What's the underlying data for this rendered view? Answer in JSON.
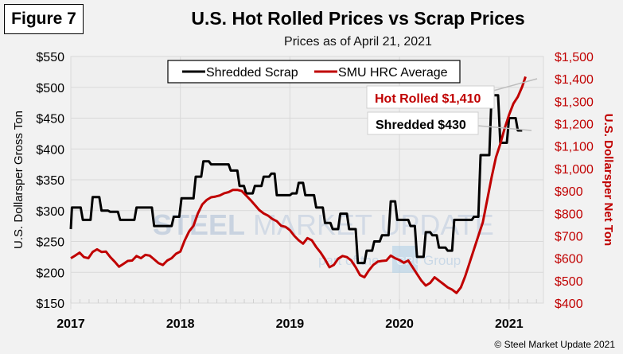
{
  "figure_label": "Figure 7",
  "copyright": "© Steel Market Update 2021",
  "watermark": {
    "line1_bold": "STEEL",
    "line1_light": "MARKET UPDATE",
    "line2": "part of the",
    "badge": "CRU",
    "line2_end": "Group"
  },
  "chart_data": {
    "type": "line",
    "title": "U.S. Hot Rolled Prices vs Scrap Prices",
    "subtitle": "Prices as of April 21, 2021",
    "xlabel": "",
    "x_ticks": [
      "2017",
      "2018",
      "2019",
      "2020",
      "2021"
    ],
    "x_range": [
      2017.0,
      2021.32
    ],
    "y_left": {
      "label": "U.S. Dollarsper Gross Ton",
      "range": [
        150,
        550
      ],
      "ticks": [
        "$150",
        "$200",
        "$250",
        "$300",
        "$350",
        "$400",
        "$450",
        "$500",
        "$550"
      ],
      "color": "#000000"
    },
    "y_right": {
      "label": "U.S. Dollarsper Net Ton",
      "range": [
        400,
        1500
      ],
      "ticks": [
        "$400",
        "$500",
        "$600",
        "$700",
        "$800",
        "$900",
        "$1,000",
        "$1,100",
        "$1,200",
        "$1,300",
        "$1,400",
        "$1,500"
      ],
      "color": "#c00000"
    },
    "grid": true,
    "legend": {
      "position": "top-center",
      "entries": [
        "Shredded Scrap",
        "SMU HRC Average"
      ]
    },
    "annotations": [
      {
        "text": "Hot Rolled $1,410",
        "series": "SMU HRC Average",
        "color": "#c00000"
      },
      {
        "text": "Shredded $430",
        "series": "Shredded Scrap",
        "color": "#000000"
      }
    ],
    "series": [
      {
        "name": "Shredded Scrap",
        "axis": "left",
        "color": "#000000",
        "step": true,
        "points": [
          [
            2017.0,
            270
          ],
          [
            2017.01,
            305
          ],
          [
            2017.09,
            305
          ],
          [
            2017.11,
            285
          ],
          [
            2017.18,
            285
          ],
          [
            2017.2,
            322
          ],
          [
            2017.26,
            322
          ],
          [
            2017.28,
            300
          ],
          [
            2017.34,
            300
          ],
          [
            2017.36,
            298
          ],
          [
            2017.43,
            298
          ],
          [
            2017.45,
            285
          ],
          [
            2017.58,
            285
          ],
          [
            2017.6,
            305
          ],
          [
            2017.74,
            305
          ],
          [
            2017.76,
            275
          ],
          [
            2017.92,
            275
          ],
          [
            2017.94,
            290
          ],
          [
            2017.99,
            290
          ],
          [
            2018.01,
            320
          ],
          [
            2018.12,
            320
          ],
          [
            2018.14,
            355
          ],
          [
            2018.19,
            355
          ],
          [
            2018.21,
            380
          ],
          [
            2018.26,
            380
          ],
          [
            2018.28,
            375
          ],
          [
            2018.44,
            375
          ],
          [
            2018.46,
            365
          ],
          [
            2018.52,
            365
          ],
          [
            2018.54,
            340
          ],
          [
            2018.58,
            340
          ],
          [
            2018.6,
            328
          ],
          [
            2018.66,
            328
          ],
          [
            2018.68,
            340
          ],
          [
            2018.74,
            340
          ],
          [
            2018.76,
            355
          ],
          [
            2018.81,
            355
          ],
          [
            2018.83,
            360
          ],
          [
            2018.86,
            360
          ],
          [
            2018.88,
            325
          ],
          [
            2019.0,
            325
          ],
          [
            2019.02,
            328
          ],
          [
            2019.06,
            328
          ],
          [
            2019.08,
            345
          ],
          [
            2019.12,
            345
          ],
          [
            2019.14,
            325
          ],
          [
            2019.22,
            325
          ],
          [
            2019.24,
            305
          ],
          [
            2019.3,
            305
          ],
          [
            2019.32,
            280
          ],
          [
            2019.37,
            280
          ],
          [
            2019.39,
            270
          ],
          [
            2019.44,
            270
          ],
          [
            2019.46,
            295
          ],
          [
            2019.52,
            295
          ],
          [
            2019.54,
            270
          ],
          [
            2019.6,
            270
          ],
          [
            2019.62,
            215
          ],
          [
            2019.68,
            215
          ],
          [
            2019.7,
            235
          ],
          [
            2019.75,
            235
          ],
          [
            2019.77,
            250
          ],
          [
            2019.82,
            250
          ],
          [
            2019.84,
            260
          ],
          [
            2019.9,
            260
          ],
          [
            2019.92,
            315
          ],
          [
            2019.96,
            315
          ],
          [
            2019.98,
            285
          ],
          [
            2020.08,
            285
          ],
          [
            2020.1,
            275
          ],
          [
            2020.14,
            275
          ],
          [
            2020.16,
            225
          ],
          [
            2020.22,
            225
          ],
          [
            2020.24,
            265
          ],
          [
            2020.28,
            265
          ],
          [
            2020.3,
            260
          ],
          [
            2020.34,
            260
          ],
          [
            2020.36,
            240
          ],
          [
            2020.42,
            240
          ],
          [
            2020.44,
            235
          ],
          [
            2020.48,
            235
          ],
          [
            2020.5,
            285
          ],
          [
            2020.66,
            285
          ],
          [
            2020.68,
            290
          ],
          [
            2020.72,
            290
          ],
          [
            2020.74,
            390
          ],
          [
            2020.82,
            390
          ],
          [
            2020.84,
            487
          ],
          [
            2020.9,
            487
          ],
          [
            2020.92,
            410
          ],
          [
            2020.98,
            410
          ],
          [
            2021.0,
            450
          ],
          [
            2021.06,
            450
          ],
          [
            2021.08,
            430
          ],
          [
            2021.12,
            430
          ]
        ]
      },
      {
        "name": "SMU HRC Average",
        "axis": "right",
        "color": "#c00000",
        "step": false,
        "points": [
          [
            2017.0,
            600
          ],
          [
            2017.04,
            612
          ],
          [
            2017.08,
            625
          ],
          [
            2017.12,
            605
          ],
          [
            2017.16,
            600
          ],
          [
            2017.2,
            628
          ],
          [
            2017.24,
            640
          ],
          [
            2017.28,
            628
          ],
          [
            2017.32,
            630
          ],
          [
            2017.36,
            605
          ],
          [
            2017.4,
            585
          ],
          [
            2017.44,
            562
          ],
          [
            2017.48,
            575
          ],
          [
            2017.52,
            588
          ],
          [
            2017.56,
            590
          ],
          [
            2017.6,
            610
          ],
          [
            2017.64,
            600
          ],
          [
            2017.68,
            615
          ],
          [
            2017.72,
            612
          ],
          [
            2017.76,
            595
          ],
          [
            2017.8,
            578
          ],
          [
            2017.84,
            570
          ],
          [
            2017.88,
            590
          ],
          [
            2017.92,
            600
          ],
          [
            2017.96,
            620
          ],
          [
            2018.0,
            630
          ],
          [
            2018.04,
            680
          ],
          [
            2018.08,
            720
          ],
          [
            2018.12,
            745
          ],
          [
            2018.16,
            800
          ],
          [
            2018.2,
            840
          ],
          [
            2018.24,
            860
          ],
          [
            2018.28,
            872
          ],
          [
            2018.32,
            875
          ],
          [
            2018.36,
            880
          ],
          [
            2018.4,
            890
          ],
          [
            2018.44,
            895
          ],
          [
            2018.48,
            905
          ],
          [
            2018.52,
            905
          ],
          [
            2018.56,
            900
          ],
          [
            2018.6,
            880
          ],
          [
            2018.64,
            860
          ],
          [
            2018.68,
            838
          ],
          [
            2018.72,
            815
          ],
          [
            2018.76,
            800
          ],
          [
            2018.8,
            790
          ],
          [
            2018.84,
            775
          ],
          [
            2018.88,
            765
          ],
          [
            2018.92,
            745
          ],
          [
            2018.96,
            740
          ],
          [
            2019.0,
            725
          ],
          [
            2019.04,
            700
          ],
          [
            2019.08,
            680
          ],
          [
            2019.12,
            665
          ],
          [
            2019.16,
            690
          ],
          [
            2019.2,
            680
          ],
          [
            2019.24,
            650
          ],
          [
            2019.28,
            625
          ],
          [
            2019.32,
            595
          ],
          [
            2019.36,
            560
          ],
          [
            2019.4,
            570
          ],
          [
            2019.44,
            598
          ],
          [
            2019.48,
            610
          ],
          [
            2019.52,
            605
          ],
          [
            2019.56,
            590
          ],
          [
            2019.6,
            560
          ],
          [
            2019.64,
            525
          ],
          [
            2019.68,
            515
          ],
          [
            2019.72,
            545
          ],
          [
            2019.76,
            570
          ],
          [
            2019.8,
            585
          ],
          [
            2019.84,
            588
          ],
          [
            2019.88,
            590
          ],
          [
            2019.92,
            612
          ],
          [
            2019.96,
            600
          ],
          [
            2020.0,
            592
          ],
          [
            2020.04,
            580
          ],
          [
            2020.08,
            590
          ],
          [
            2020.12,
            560
          ],
          [
            2020.16,
            530
          ],
          [
            2020.2,
            500
          ],
          [
            2020.24,
            478
          ],
          [
            2020.28,
            490
          ],
          [
            2020.32,
            515
          ],
          [
            2020.36,
            500
          ],
          [
            2020.4,
            485
          ],
          [
            2020.44,
            470
          ],
          [
            2020.48,
            460
          ],
          [
            2020.52,
            445
          ],
          [
            2020.56,
            470
          ],
          [
            2020.6,
            520
          ],
          [
            2020.64,
            580
          ],
          [
            2020.68,
            640
          ],
          [
            2020.72,
            700
          ],
          [
            2020.76,
            760
          ],
          [
            2020.8,
            860
          ],
          [
            2020.84,
            960
          ],
          [
            2020.88,
            1050
          ],
          [
            2020.92,
            1110
          ],
          [
            2020.96,
            1180
          ],
          [
            2021.0,
            1240
          ],
          [
            2021.04,
            1290
          ],
          [
            2021.08,
            1320
          ],
          [
            2021.12,
            1365
          ],
          [
            2021.15,
            1410
          ]
        ]
      }
    ]
  }
}
